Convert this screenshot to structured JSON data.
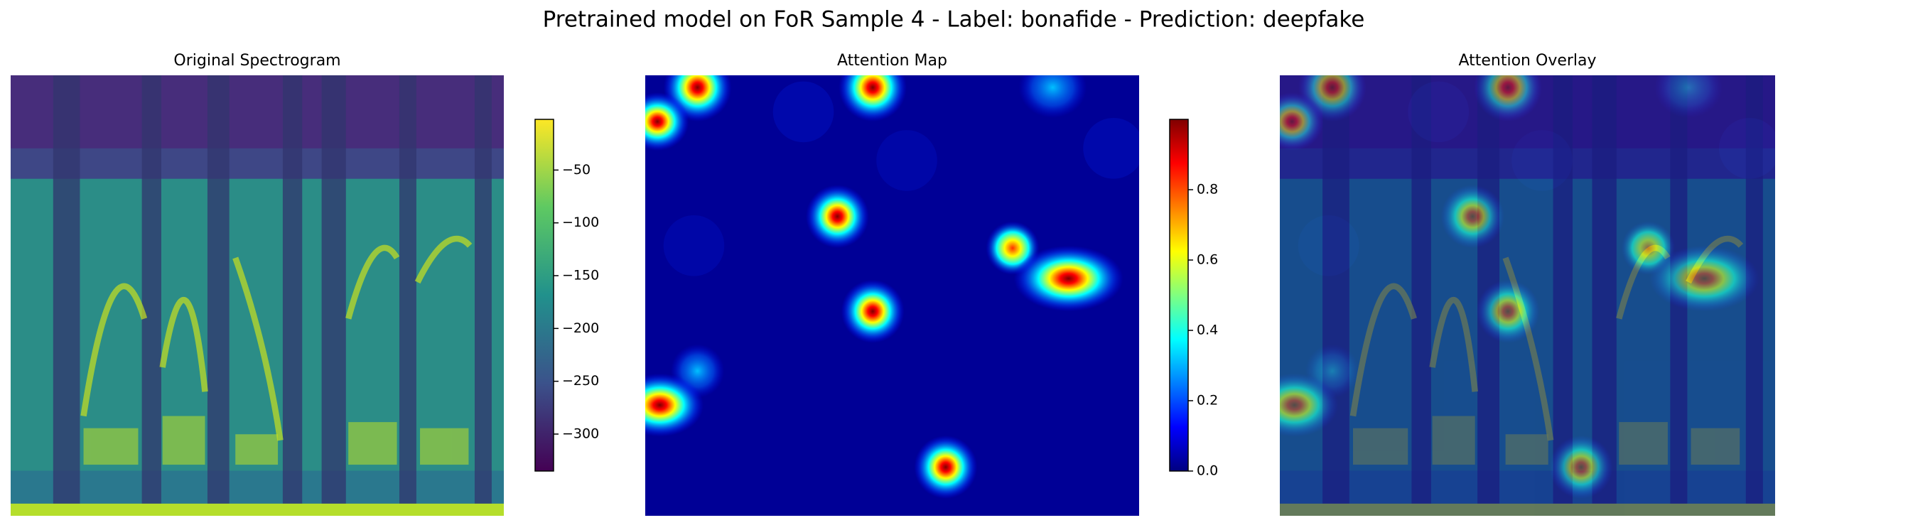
{
  "title": "Pretrained model on FoR Sample 4 - Label: bonafide - Prediction: deepfake",
  "chart_data": [
    {
      "type": "heatmap",
      "title": "Original Spectrogram",
      "colorbar": {
        "colormap": "viridis",
        "ylim": [
          -335,
          -2
        ],
        "yticks": [
          {
            "value": -50,
            "label": "−50"
          },
          {
            "value": -100,
            "label": "−100"
          },
          {
            "value": -150,
            "label": "−150"
          },
          {
            "value": -200,
            "label": "−200"
          },
          {
            "value": -250,
            "label": "−250"
          },
          {
            "value": -300,
            "label": "−300"
          }
        ]
      }
    },
    {
      "type": "heatmap",
      "title": "Attention Map",
      "colorbar": {
        "colormap": "jet",
        "ylim": [
          0,
          1
        ],
        "yticks": [
          {
            "value": 0,
            "label": "0.0"
          },
          0.2,
          0.4,
          0.6,
          0.8
        ]
      }
    },
    {
      "type": "heatmap",
      "title": "Attention Overlay"
    }
  ]
}
